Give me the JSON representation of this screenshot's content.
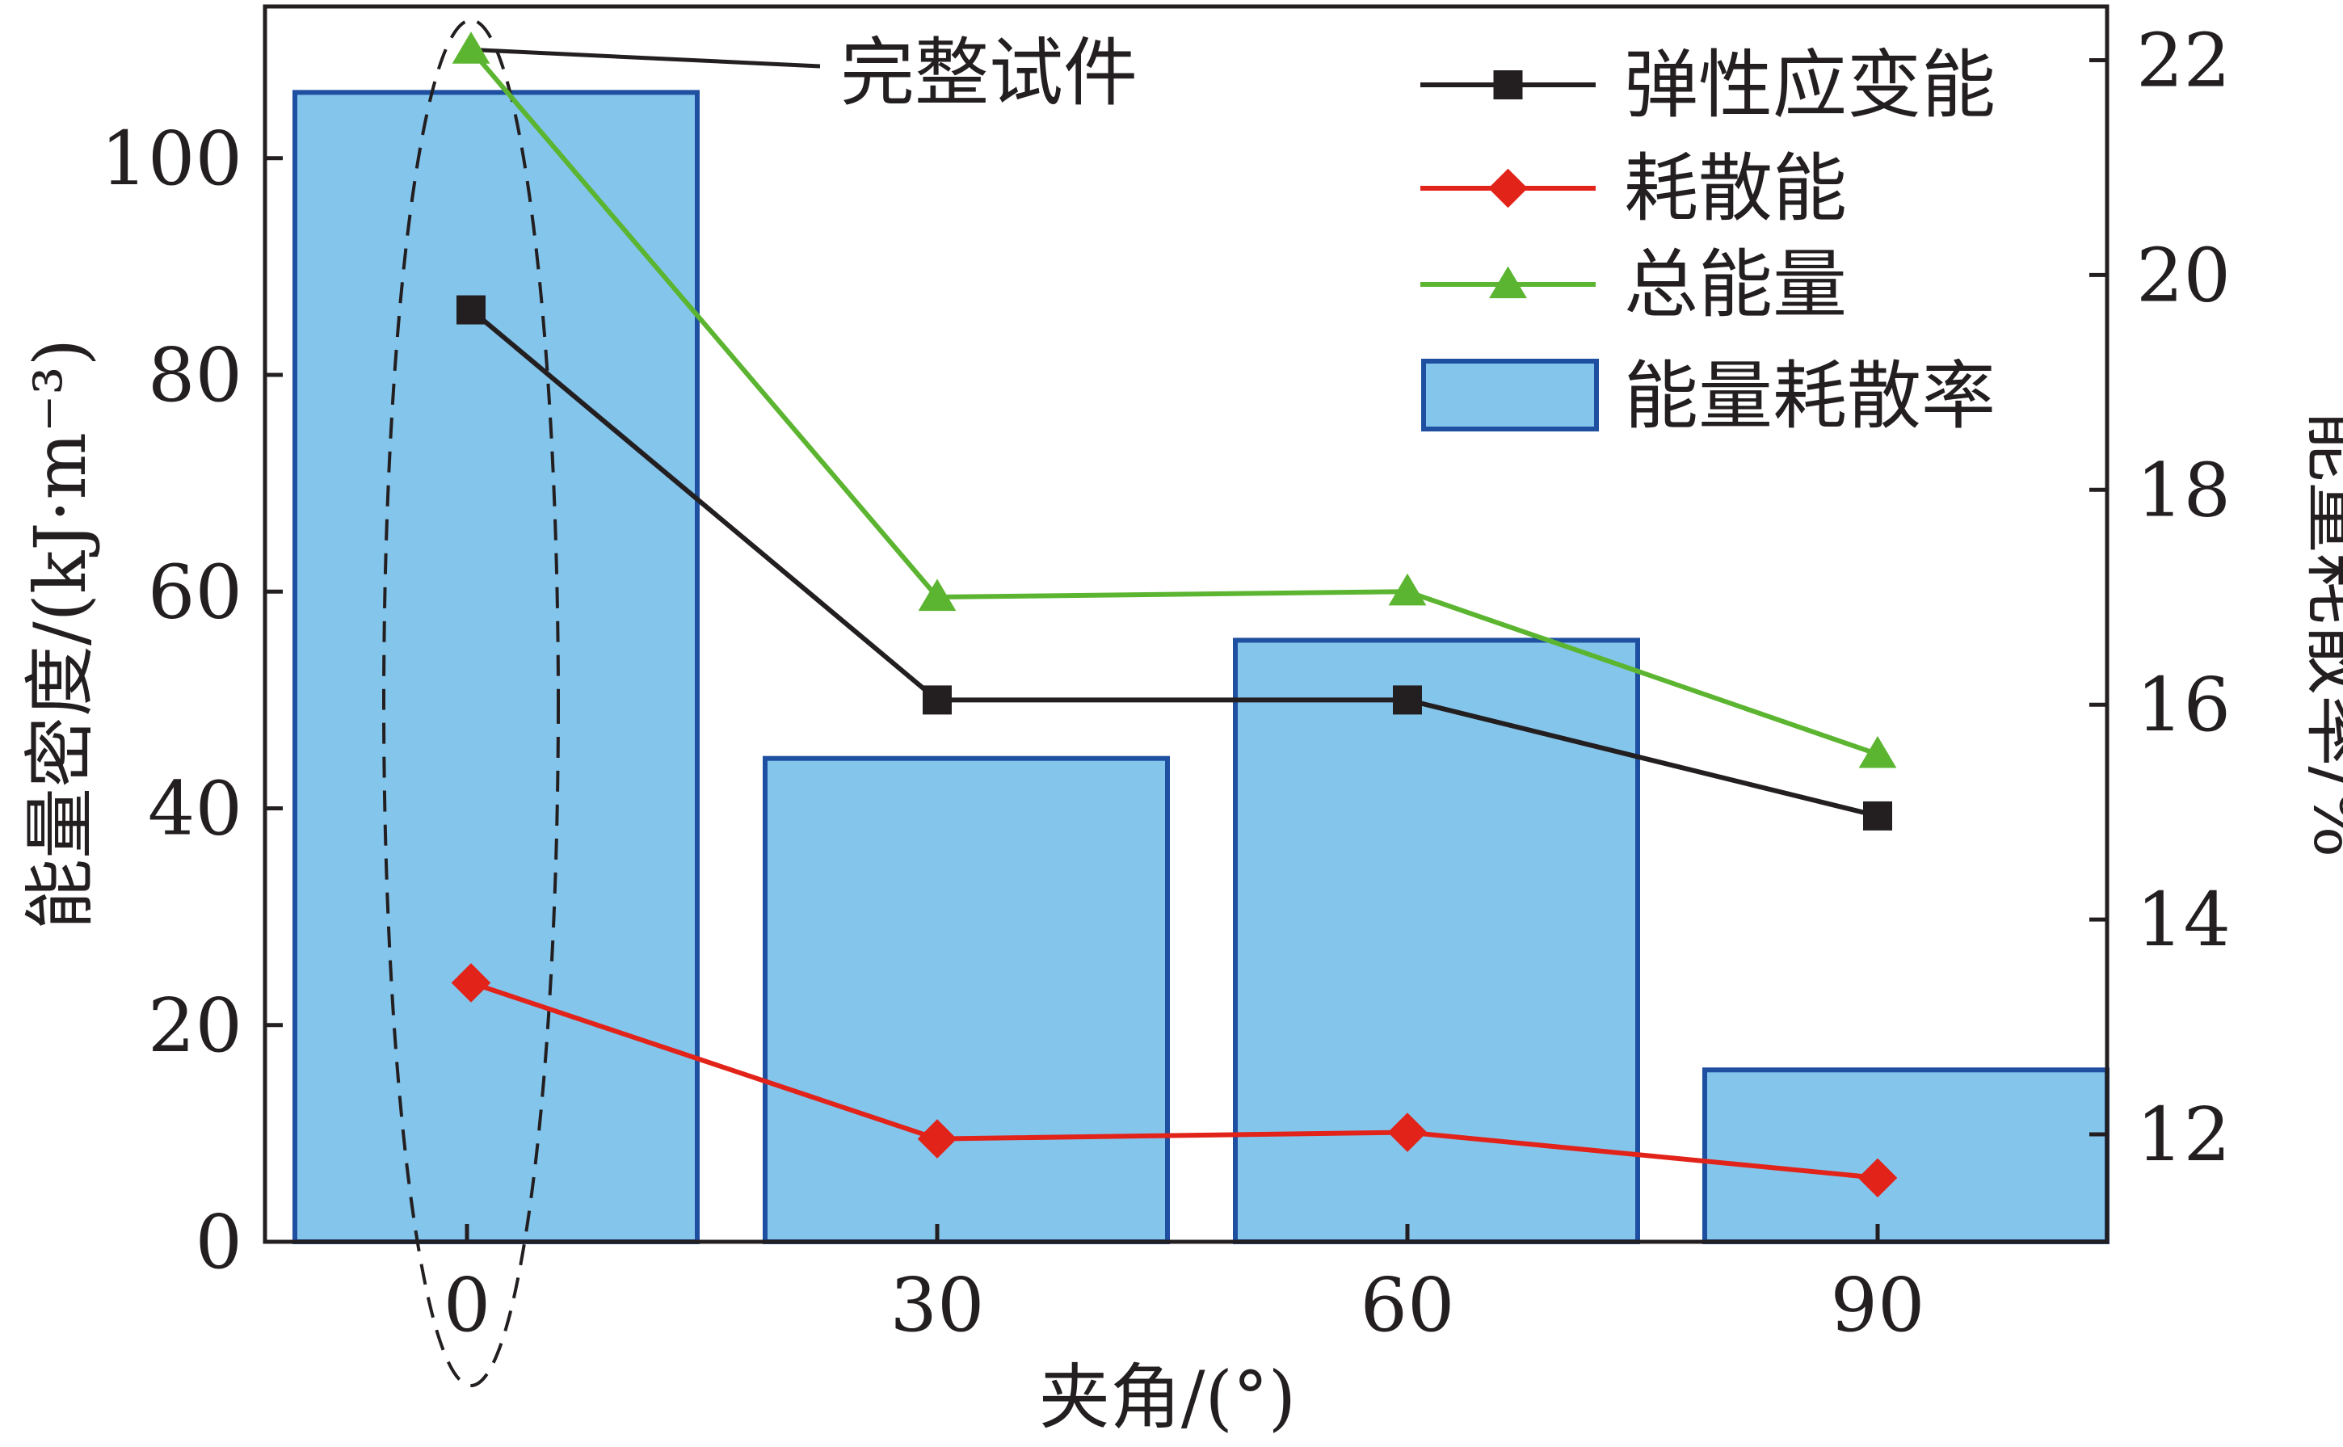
{
  "chart_data": {
    "type": "bar+line",
    "categories": [
      "0",
      "30",
      "60",
      "90"
    ],
    "xlabel": "夹角/(°)",
    "ylabel_left": "能量密度/(kJ·m⁻³)",
    "ylabel_right": "能量耗散率/%",
    "ylim_left": [
      0,
      114
    ],
    "ylim_right": [
      11,
      22.5
    ],
    "yticks_left": [
      "0",
      "20",
      "40",
      "60",
      "80",
      "100"
    ],
    "yticks_right": [
      "12",
      "14",
      "16",
      "18",
      "20",
      "22"
    ],
    "grid": false,
    "legend_position": "top-right",
    "bars": {
      "name": "能量耗散率",
      "axis": "right",
      "values": [
        21.7,
        15.5,
        16.6,
        12.6
      ],
      "color": "#84c5ec",
      "edge_color": "#1f4fa0"
    },
    "series": [
      {
        "name": "弹性应变能",
        "axis": "left",
        "values": [
          86,
          50,
          50,
          39.3
        ],
        "color": "#231f20",
        "marker": "square"
      },
      {
        "name": "耗散能",
        "axis": "left",
        "values": [
          23.9,
          9.5,
          10.1,
          5.9
        ],
        "color": "#e2231a",
        "marker": "diamond"
      },
      {
        "name": "总能量",
        "axis": "left",
        "values": [
          110,
          59.5,
          60,
          45
        ],
        "color": "#5cb531",
        "marker": "triangle"
      }
    ],
    "annotations": [
      {
        "text": "完整试件",
        "target_category": "0"
      }
    ]
  }
}
